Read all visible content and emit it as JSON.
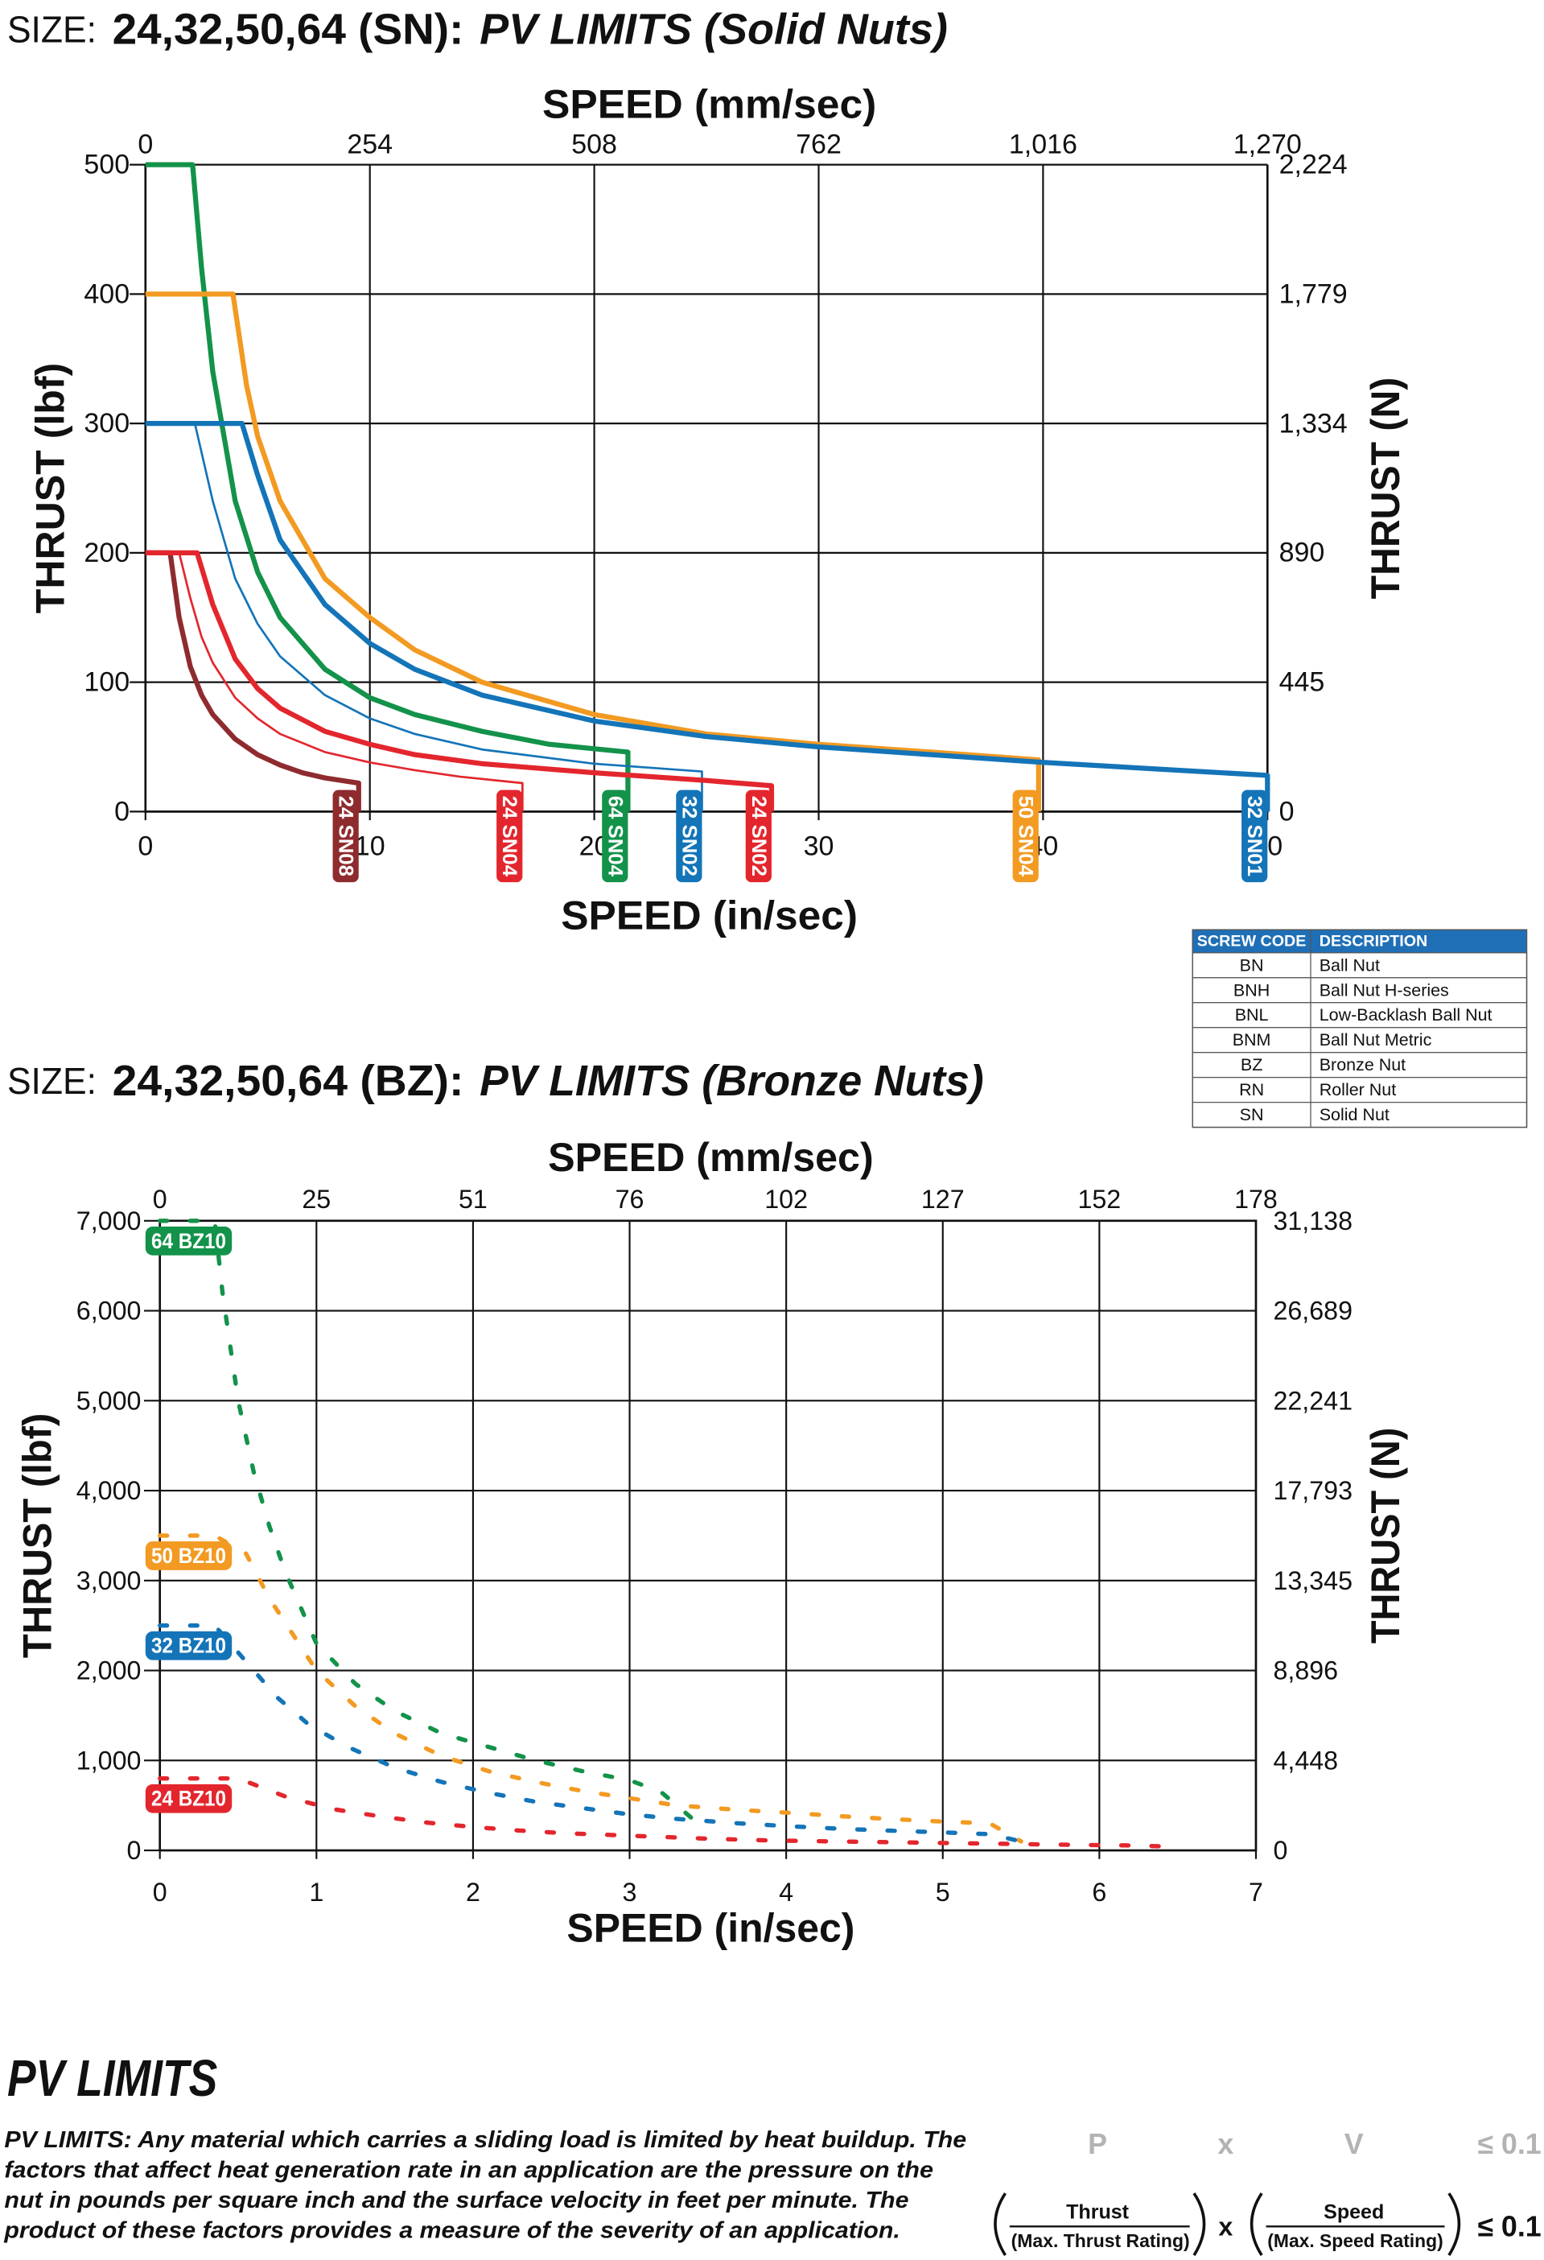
{
  "chart_data": [
    {
      "type": "line",
      "title_prefix": "SIZE:",
      "title_size": "24,32,50,64 (SN):",
      "title": "PV LIMITS (Solid Nuts)",
      "x_label": "SPEED (in/sec)",
      "x2_label": "SPEED (mm/sec)",
      "y_label": "THRUST (lbf)",
      "y2_label": "THRUST (N)",
      "xlim": [
        0,
        50
      ],
      "xticks": [
        0,
        10,
        20,
        30,
        40,
        50
      ],
      "x2lim": [
        0,
        1270
      ],
      "x2ticks": [
        0,
        254,
        508,
        762,
        {
          "value": 1016,
          "label": "1,016"
        },
        {
          "value": 1270,
          "label": "1,270"
        }
      ],
      "ylim": [
        0,
        500
      ],
      "yticks": [
        0,
        100,
        200,
        300,
        400,
        500
      ],
      "y2lim": [
        0,
        2224
      ],
      "y2ticks": [
        0,
        445,
        890,
        {
          "value": 1334,
          "label": "1,334"
        },
        {
          "value": 1779,
          "label": "1,779"
        },
        {
          "value": 2224,
          "label": "2,224"
        }
      ],
      "grid": true,
      "line_style": "solid",
      "series_label_position": "end",
      "series": [
        {
          "name": "24 SN08",
          "color": "#8e2b2f",
          "line_width": 3.5,
          "x": [
            0,
            1.1,
            1.5,
            2,
            2.5,
            3,
            4,
            5,
            6,
            7,
            8,
            9.5,
            9.5
          ],
          "values": [
            200,
            200,
            150,
            112,
            90,
            75,
            56,
            44,
            36,
            30,
            26,
            22,
            0
          ]
        },
        {
          "name": "24 SN04",
          "color": "#e3262d",
          "line_width": 1.5,
          "x": [
            0,
            1.5,
            2,
            2.5,
            3,
            4,
            5,
            6,
            8,
            10,
            12,
            14,
            16.8,
            16.8
          ],
          "values": [
            200,
            200,
            165,
            135,
            115,
            88,
            72,
            60,
            46,
            38,
            32,
            27,
            22,
            0
          ]
        },
        {
          "name": "64 SN04",
          "color": "#13924a",
          "line_width": 3.5,
          "x": [
            0,
            2.1,
            2.5,
            3,
            4,
            5,
            6,
            8,
            10,
            12,
            15,
            18,
            21.5,
            21.5
          ],
          "values": [
            500,
            500,
            420,
            340,
            240,
            185,
            150,
            110,
            88,
            75,
            62,
            52,
            46,
            0
          ]
        },
        {
          "name": "32 SN02",
          "color": "#1474b8",
          "line_width": 1.5,
          "x": [
            0,
            2.2,
            3,
            4,
            5,
            6,
            8,
            10,
            12,
            15,
            20,
            24.8,
            24.8
          ],
          "values": [
            300,
            300,
            240,
            180,
            145,
            120,
            90,
            72,
            60,
            48,
            37,
            31,
            0
          ]
        },
        {
          "name": "24 SN02",
          "color": "#e3262d",
          "line_width": 3.5,
          "x": [
            0,
            2.3,
            3,
            4,
            5,
            6,
            8,
            10,
            12,
            15,
            20,
            25,
            27.9,
            27.9
          ],
          "values": [
            200,
            200,
            160,
            118,
            95,
            80,
            62,
            52,
            44,
            37,
            30,
            24,
            20,
            0
          ]
        },
        {
          "name": "50 SN04",
          "color": "#f29a22",
          "line_width": 3.5,
          "x": [
            0,
            3.9,
            4.5,
            5,
            6,
            8,
            10,
            12,
            15,
            20,
            25,
            30,
            35,
            39.8,
            39.8
          ],
          "values": [
            400,
            400,
            330,
            290,
            240,
            180,
            150,
            125,
            100,
            75,
            60,
            52,
            46,
            40,
            0
          ]
        },
        {
          "name": "32 SN01",
          "color": "#1474b8",
          "line_width": 3.5,
          "x": [
            0,
            4.3,
            5,
            6,
            8,
            10,
            12,
            15,
            20,
            25,
            30,
            35,
            40,
            45,
            50,
            50
          ],
          "values": [
            300,
            300,
            260,
            210,
            160,
            130,
            110,
            90,
            70,
            58,
            50,
            44,
            38,
            33,
            28,
            0
          ]
        }
      ]
    },
    {
      "type": "line",
      "title_prefix": "SIZE:",
      "title_size": "24,32,50,64 (BZ):",
      "title": "PV LIMITS (Bronze Nuts)",
      "x_label": "SPEED (in/sec)",
      "x2_label": "SPEED (mm/sec)",
      "y_label": "THRUST (lbf)",
      "y2_label": "THRUST (N)",
      "xlim": [
        0,
        7
      ],
      "xticks": [
        0,
        1,
        2,
        3,
        4,
        5,
        6,
        7
      ],
      "x2lim": [
        0,
        177.8
      ],
      "x2ticks": [
        0,
        {
          "value": 25.4,
          "label": "25"
        },
        {
          "value": 50.8,
          "label": "51"
        },
        {
          "value": 76.2,
          "label": "76"
        },
        {
          "value": 101.6,
          "label": "102"
        },
        127,
        {
          "value": 152.4,
          "label": "152"
        },
        {
          "value": 177.8,
          "label": "178"
        }
      ],
      "ylim": [
        0,
        7000
      ],
      "yticks": [
        0,
        {
          "value": 1000,
          "label": "1,000"
        },
        {
          "value": 2000,
          "label": "2,000"
        },
        {
          "value": 3000,
          "label": "3,000"
        },
        {
          "value": 4000,
          "label": "4,000"
        },
        {
          "value": 5000,
          "label": "5,000"
        },
        {
          "value": 6000,
          "label": "6,000"
        },
        {
          "value": 7000,
          "label": "7,000"
        }
      ],
      "y2lim": [
        0,
        31138
      ],
      "y2ticks": [
        0,
        {
          "value": 4448,
          "label": "4,448"
        },
        {
          "value": 8896,
          "label": "8,896"
        },
        {
          "value": 13345,
          "label": "13,345"
        },
        {
          "value": 17793,
          "label": "17,793"
        },
        {
          "value": 22241,
          "label": "22,241"
        },
        {
          "value": 26689,
          "label": "26,689"
        },
        {
          "value": 31138,
          "label": "31,138"
        }
      ],
      "grid": true,
      "line_style": "dashed",
      "series_label_position": "start",
      "series": [
        {
          "name": "64 BZ10",
          "color": "#13924a",
          "line_width": 3,
          "x": [
            0,
            0.35,
            0.4,
            0.5,
            0.6,
            0.7,
            0.8,
            0.9,
            1,
            1.25,
            1.5,
            1.8,
            2.1,
            2.4,
            2.7,
            3,
            3.2,
            3.45
          ],
          "values": [
            7000,
            7000,
            6200,
            5000,
            4200,
            3600,
            3100,
            2700,
            2300,
            1850,
            1550,
            1300,
            1150,
            1000,
            880,
            780,
            650,
            280
          ]
        },
        {
          "name": "50 BZ10",
          "color": "#f29a22",
          "line_width": 3,
          "x": [
            0,
            0.35,
            0.55,
            0.7,
            0.85,
            1,
            1.25,
            1.5,
            1.8,
            2.1,
            2.4,
            2.7,
            3,
            3.3,
            3.7,
            4,
            4.35,
            4.65,
            5,
            5.3,
            5.5
          ],
          "values": [
            3500,
            3500,
            3300,
            2800,
            2400,
            2000,
            1600,
            1300,
            1050,
            880,
            760,
            660,
            580,
            500,
            450,
            420,
            380,
            350,
            320,
            300,
            100
          ]
        },
        {
          "name": "32 BZ10",
          "color": "#1474b8",
          "line_width": 3,
          "x": [
            0,
            0.35,
            0.55,
            0.75,
            0.95,
            1.2,
            1.5,
            1.8,
            2.1,
            2.4,
            2.7,
            3,
            3.3,
            3.7,
            4,
            4.35,
            4.65,
            5,
            5.3,
            5.5
          ],
          "values": [
            2500,
            2500,
            2100,
            1700,
            1400,
            1150,
            920,
            760,
            640,
            540,
            470,
            400,
            350,
            300,
            270,
            240,
            220,
            200,
            180,
            100
          ]
        },
        {
          "name": "24 BZ10",
          "color": "#e3262d",
          "line_width": 3,
          "x": [
            0,
            0.5,
            0.8,
            1.1,
            1.4,
            1.7,
            2,
            2.3,
            2.6,
            2.9,
            3.2,
            3.5,
            3.9,
            4.3,
            4.7,
            5.1,
            5.5,
            5.9,
            6.2,
            6.5
          ],
          "values": [
            800,
            800,
            600,
            460,
            380,
            310,
            260,
            220,
            190,
            170,
            150,
            130,
            110,
            100,
            90,
            80,
            70,
            60,
            55,
            40
          ]
        }
      ]
    }
  ],
  "table": {
    "header": [
      "SCREW CODE",
      "DESCRIPTION"
    ],
    "rows": [
      [
        "BN",
        "Ball Nut"
      ],
      [
        "BNH",
        "Ball Nut H-series"
      ],
      [
        "BNL",
        "Low-Backlash Ball Nut"
      ],
      [
        "BNM",
        "Ball Nut Metric"
      ],
      [
        "BZ",
        "Bronze Nut"
      ],
      [
        "RN",
        "Roller Nut"
      ],
      [
        "SN",
        "Solid Nut"
      ]
    ]
  },
  "section": {
    "title": "PV LIMITS",
    "lines": [
      "PV LIMITS: Any material which carries a sliding load is limited by heat buildup. The",
      "factors that affect heat generation rate in an application are the pressure on the",
      "nut in pounds per square inch and the surface velocity in feet per minute. The",
      "product of these factors provides a measure of the severity of an application."
    ]
  },
  "formula": {
    "line1": [
      "P",
      "x",
      "V",
      "≤ 0.1"
    ],
    "thrust": "Thrust",
    "max_thrust": "(Max. Thrust Rating)",
    "times": "x",
    "speed": "Speed",
    "max_speed": "(Max. Speed Rating)",
    "result": "≤ 0.1"
  }
}
